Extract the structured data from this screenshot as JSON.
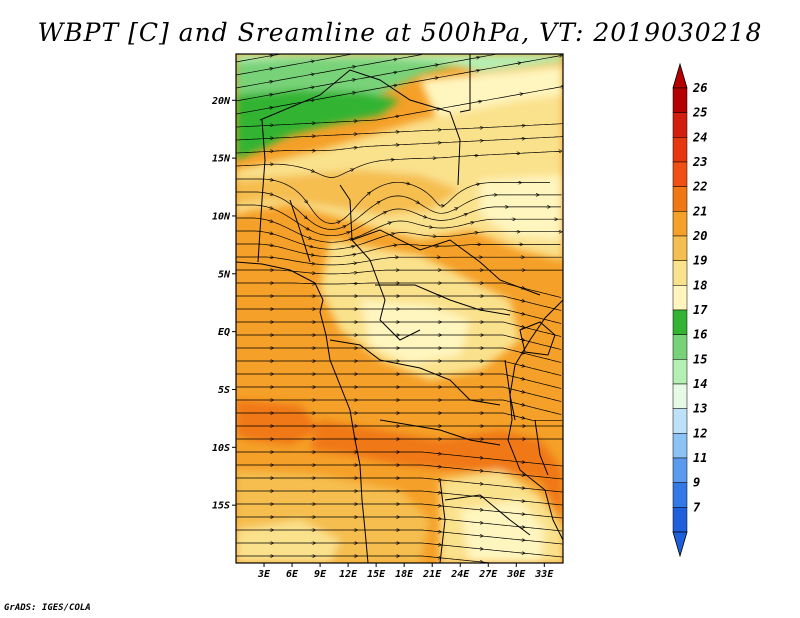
{
  "title": "WBPT [C] and Sreamline at 500hPa, VT: 2019030218",
  "credit": "GrADS: IGES/COLA",
  "map": {
    "lon_range": [
      0,
      35
    ],
    "lat_range": [
      -20,
      24
    ],
    "lon_ticks": [
      {
        "value": 3,
        "label": "3E"
      },
      {
        "value": 6,
        "label": "6E"
      },
      {
        "value": 9,
        "label": "9E"
      },
      {
        "value": 12,
        "label": "12E"
      },
      {
        "value": 15,
        "label": "15E"
      },
      {
        "value": 18,
        "label": "18E"
      },
      {
        "value": 21,
        "label": "21E"
      },
      {
        "value": 24,
        "label": "24E"
      },
      {
        "value": 27,
        "label": "27E"
      },
      {
        "value": 30,
        "label": "30E"
      },
      {
        "value": 33,
        "label": "33E"
      }
    ],
    "lat_ticks": [
      {
        "value": 20,
        "label": "20N"
      },
      {
        "value": 15,
        "label": "15N"
      },
      {
        "value": 10,
        "label": "10N"
      },
      {
        "value": 5,
        "label": "5N"
      },
      {
        "value": 0,
        "label": "EQ"
      },
      {
        "value": -5,
        "label": "5S"
      },
      {
        "value": -10,
        "label": "10S"
      },
      {
        "value": -15,
        "label": "15S"
      }
    ]
  },
  "colorbar": {
    "labels": [
      "26",
      "25",
      "24",
      "23",
      "22",
      "21",
      "20",
      "19",
      "18",
      "17",
      "16",
      "15",
      "14",
      "13",
      "12",
      "11",
      "9",
      "7"
    ],
    "colors": [
      "#b40000",
      "#d21e0f",
      "#e6370f",
      "#f05014",
      "#f07814",
      "#f5a028",
      "#f5be50",
      "#fae18c",
      "#fff5be",
      "#32b432",
      "#78d278",
      "#b4f0b4",
      "#e6fae6",
      "#bee1fa",
      "#8cc3f5",
      "#5a9bf0",
      "#3278e6",
      "#1e5fdc"
    ],
    "top_arrow_color": "#b40000",
    "bottom_arrow_color": "#1e5fdc"
  },
  "field_colors": {
    "green_dark": "#32b432",
    "green_mid": "#78d278",
    "green_light": "#b4f0b4",
    "cream": "#fff5be",
    "yellow": "#fae18c",
    "light_orange": "#f5be50",
    "orange": "#f5a028",
    "deep_orange": "#f07814"
  }
}
